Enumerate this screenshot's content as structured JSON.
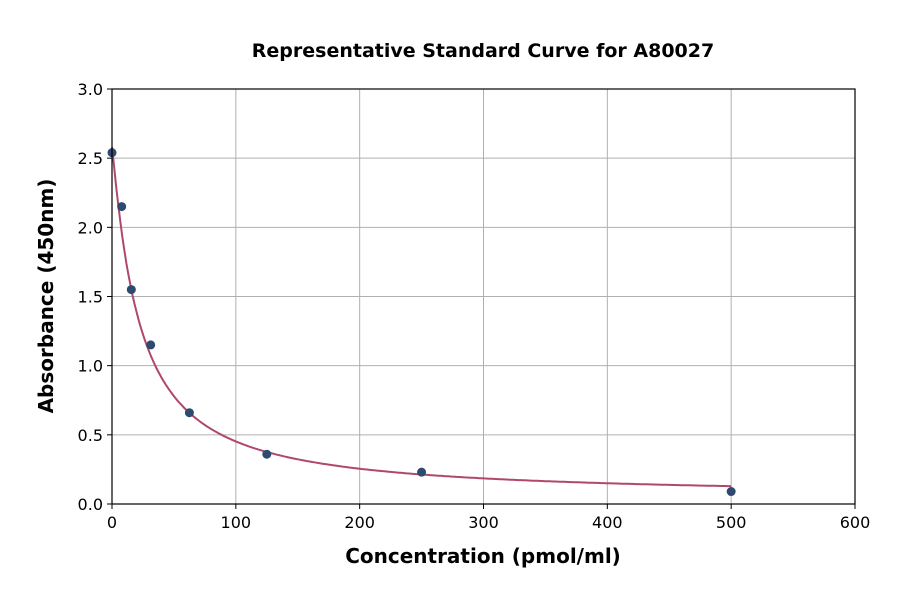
{
  "chart_data": {
    "type": "scatter",
    "title": "Representative Standard Curve for A80027",
    "xlabel": "Concentration (pmol/ml)",
    "ylabel": "Absorbance (450nm)",
    "xlim": [
      0,
      600
    ],
    "ylim": [
      0,
      3.0
    ],
    "xticks": [
      "0",
      "100",
      "200",
      "300",
      "400",
      "500",
      "600"
    ],
    "yticks": [
      "0.0",
      "0.5",
      "1.0",
      "1.5",
      "2.0",
      "2.5",
      "3.0"
    ],
    "grid": true,
    "points": [
      {
        "x": 0,
        "y": 2.54
      },
      {
        "x": 7.8,
        "y": 2.15
      },
      {
        "x": 15.6,
        "y": 1.55
      },
      {
        "x": 31.25,
        "y": 1.15
      },
      {
        "x": 62.5,
        "y": 0.66
      },
      {
        "x": 125,
        "y": 0.36
      },
      {
        "x": 250,
        "y": 0.23
      },
      {
        "x": 500,
        "y": 0.09
      }
    ],
    "fit_curve": true,
    "colors": {
      "points": "#2e4a6e",
      "curve": "#b0476e",
      "grid": "#b0b0b0"
    }
  }
}
